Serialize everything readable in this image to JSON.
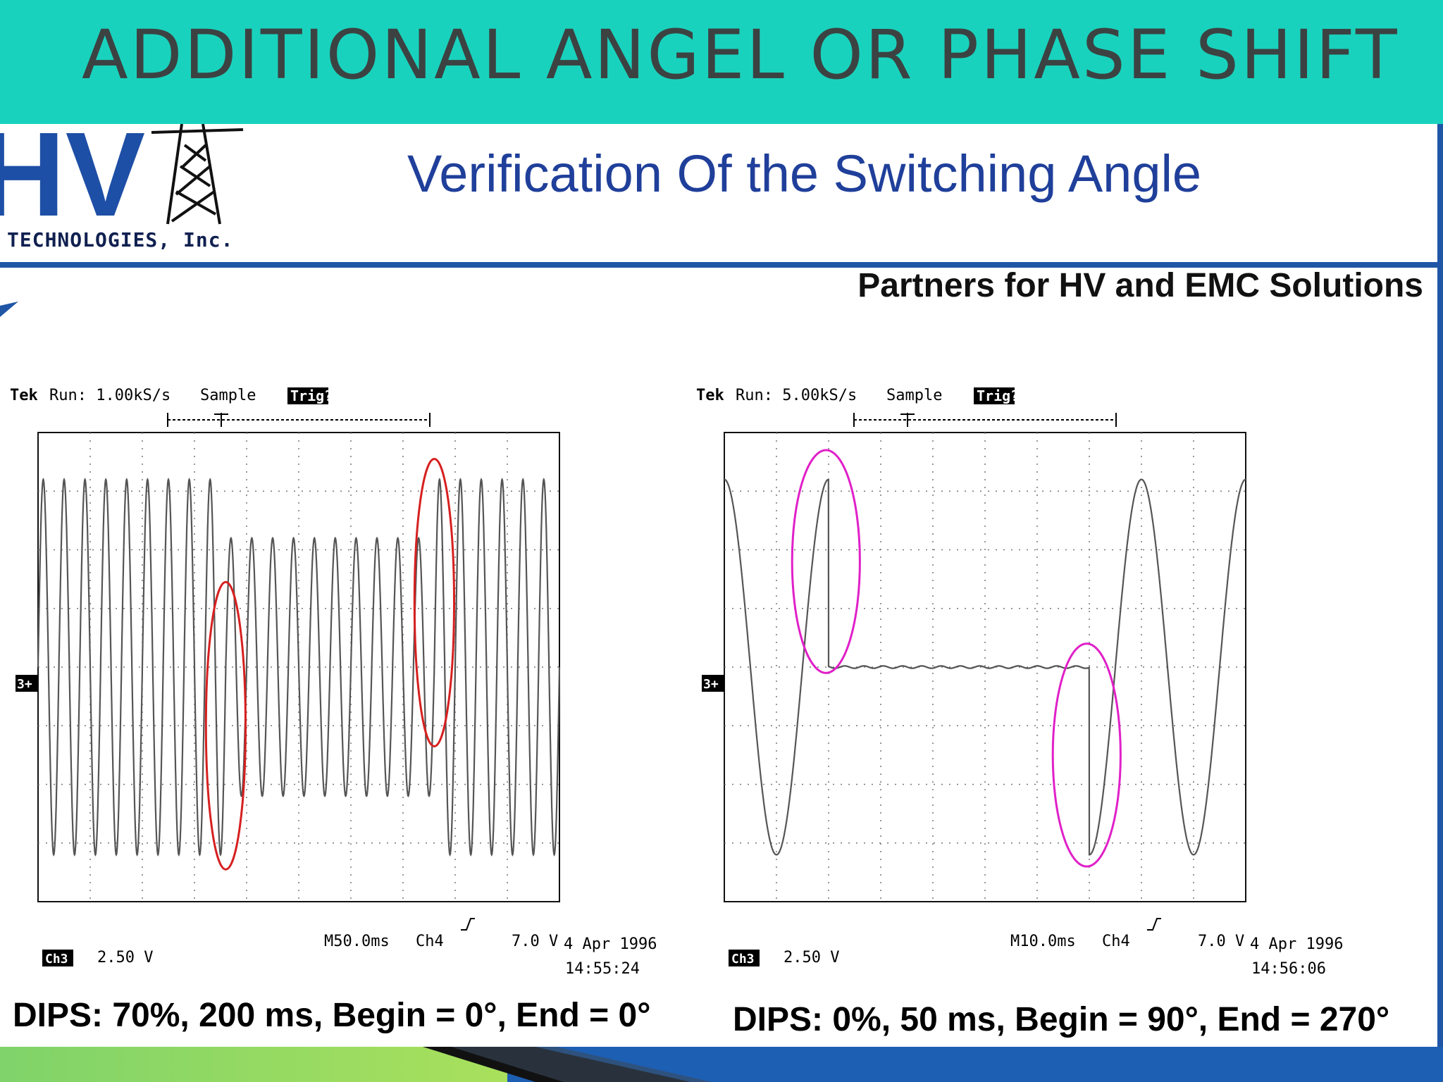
{
  "banner": {
    "title": "ADDITIONAL ANGEL OR PHASE SHIFT"
  },
  "logo": {
    "letters": "HV",
    "text": "TECHNOLOGIES, Inc."
  },
  "slide": {
    "title": "Verification Of the Switching Angle",
    "tagline": "Partners for HV and EMC Solutions"
  },
  "colors": {
    "banner": "#19d2bd",
    "title": "#1f3f9a",
    "rule": "#1f56a6",
    "trace": "#555555",
    "highlight_left": "#d62020",
    "highlight_right": "#e020c8"
  },
  "scopes": [
    {
      "header": {
        "brand": "Tek",
        "run": "Run: 1.00kS/s",
        "mode": "Sample",
        "status": "Trig?"
      },
      "ch_marker": "3+",
      "ch_label": "Ch3",
      "ch_scale": "2.50 V",
      "timebase": "M50.0ms",
      "trigger_ch": "Ch4",
      "trigger_level": "7.0 V",
      "date": "4 Apr 1996",
      "time": "14:55:24",
      "caption": "DIPS: 70%, 200 ms, Begin = 0°, End = 0°"
    },
    {
      "header": {
        "brand": "Tek",
        "run": "Run: 5.00kS/s",
        "mode": "Sample",
        "status": "Trig?"
      },
      "ch_marker": "3+",
      "ch_label": "Ch3",
      "ch_scale": "2.50 V",
      "timebase": "M10.0ms",
      "trigger_ch": "Ch4",
      "trigger_level": "7.0 V",
      "date": "4 Apr 1996",
      "time": "14:56:06",
      "caption": "DIPS: 0%, 50 ms, Begin = 90°, End = 270°"
    }
  ],
  "chart_data": [
    {
      "type": "line",
      "sine_frequency_hz": 50,
      "time_per_div_ms": 50,
      "divisions_x": 10,
      "divisions_y": 8,
      "ylim": [
        -4,
        4
      ],
      "grid": true,
      "series": [
        {
          "segments": [
            {
              "t_start_ms": 0,
              "t_end_ms": 180,
              "amplitude_div": 3.2,
              "phase_deg": 0
            },
            {
              "t_start_ms": 180,
              "t_end_ms": 380,
              "amplitude_div": 2.2,
              "phase_deg": 0
            },
            {
              "t_start_ms": 380,
              "t_end_ms": 500,
              "amplitude_div": 3.2,
              "phase_deg": 0
            }
          ]
        }
      ],
      "highlights": [
        {
          "t_center_ms": 180,
          "y_center_div": -1,
          "width_ms": 38,
          "height_div": 4.9,
          "color": "#d62020"
        },
        {
          "t_center_ms": 380,
          "y_center_div": 1.1,
          "width_ms": 38,
          "height_div": 4.9,
          "color": "#d62020"
        }
      ]
    },
    {
      "type": "line",
      "sine_frequency_hz": 50,
      "time_per_div_ms": 10,
      "divisions_x": 10,
      "divisions_y": 8,
      "ylim": [
        -4,
        4
      ],
      "grid": true,
      "series": [
        {
          "segments": [
            {
              "t_start_ms": 0,
              "t_end_ms": 20,
              "amplitude_div": 3.2,
              "phase_deg": 90
            },
            {
              "t_start_ms": 20,
              "t_end_ms": 70,
              "amplitude_div": 0,
              "phase_deg": 0
            },
            {
              "t_start_ms": 70,
              "t_end_ms": 100,
              "amplitude_div": 3.2,
              "phase_deg": 90
            }
          ]
        }
      ],
      "highlights": [
        {
          "t_center_ms": 19.5,
          "y_center_div": 1.8,
          "width_ms": 13,
          "height_div": 3.8,
          "color": "#e020c8"
        },
        {
          "t_center_ms": 69.5,
          "y_center_div": -1.5,
          "width_ms": 13,
          "height_div": 3.8,
          "color": "#e020c8"
        }
      ]
    }
  ]
}
